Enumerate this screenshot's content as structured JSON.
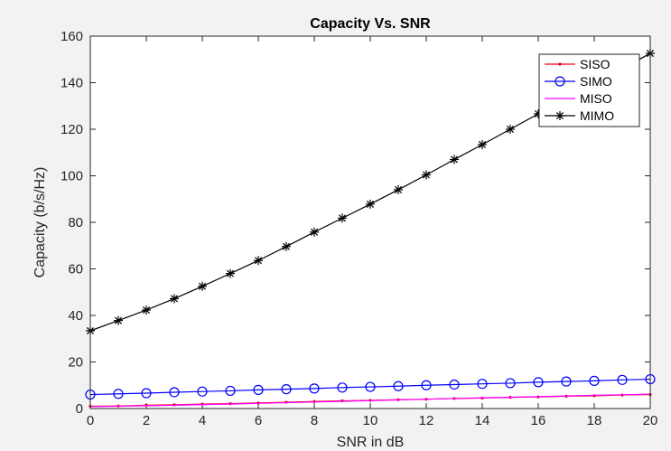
{
  "chart_data": {
    "type": "line",
    "title": "Capacity Vs. SNR",
    "xlabel": "SNR in dB",
    "ylabel": "Capacity (b/s/Hz)",
    "xlim": [
      0,
      20
    ],
    "ylim": [
      0,
      160
    ],
    "xticks": [
      0,
      2,
      4,
      6,
      8,
      10,
      12,
      14,
      16,
      18,
      20
    ],
    "yticks": [
      0,
      20,
      40,
      60,
      80,
      100,
      120,
      140,
      160
    ],
    "grid": false,
    "legend_position": "top-right",
    "x": [
      0,
      1,
      2,
      3,
      4,
      5,
      6,
      7,
      8,
      9,
      10,
      11,
      12,
      13,
      14,
      15,
      16,
      17,
      18,
      19,
      20
    ],
    "series": [
      {
        "name": "SISO",
        "color": "#e8001c",
        "marker": "dot",
        "values": [
          1.0,
          1.1,
          1.4,
          1.6,
          1.9,
          2.1,
          2.4,
          2.7,
          3.0,
          3.3,
          3.5,
          3.8,
          4.0,
          4.3,
          4.5,
          4.8,
          5.0,
          5.3,
          5.5,
          5.8,
          6.0
        ]
      },
      {
        "name": "SIMO",
        "color": "#0000ff",
        "marker": "circle",
        "values": [
          6.0,
          6.3,
          6.6,
          7.0,
          7.3,
          7.6,
          8.0,
          8.3,
          8.6,
          9.0,
          9.3,
          9.6,
          10.0,
          10.3,
          10.6,
          10.9,
          11.3,
          11.6,
          11.9,
          12.3,
          12.6
        ]
      },
      {
        "name": "MISO",
        "color": "#ff00ff",
        "marker": "none",
        "values": [
          0.8,
          1.0,
          1.2,
          1.4,
          1.7,
          1.9,
          2.2,
          2.5,
          2.8,
          3.1,
          3.4,
          3.7,
          4.0,
          4.3,
          4.6,
          4.8,
          5.1,
          5.4,
          5.7,
          5.9,
          6.2
        ]
      },
      {
        "name": "MIMO",
        "color": "#000000",
        "marker": "star",
        "values": [
          33.4,
          37.8,
          42.3,
          47.2,
          52.5,
          58.0,
          63.6,
          69.6,
          75.8,
          81.8,
          87.8,
          94.0,
          100.4,
          107.0,
          113.4,
          120.0,
          126.6,
          133.0,
          139.6,
          146.0,
          152.6
        ]
      }
    ]
  }
}
